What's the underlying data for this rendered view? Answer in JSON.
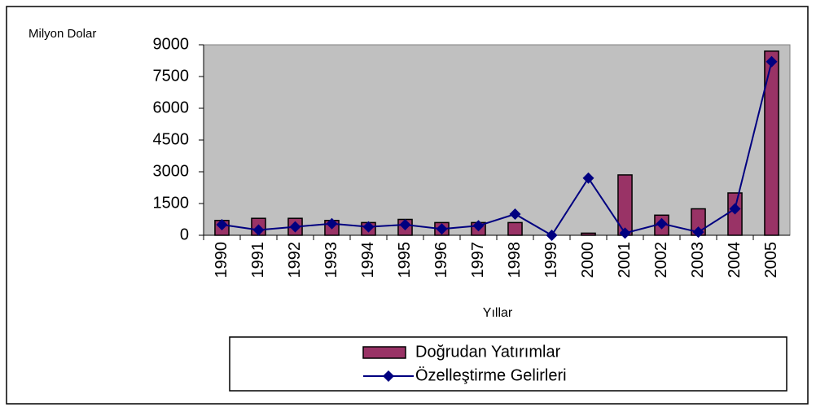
{
  "chart_data": {
    "type": "bar_line",
    "y_axis_label": "Milyon Dolar",
    "x_axis_label": "Yıllar",
    "categories": [
      "1990",
      "1991",
      "1992",
      "1993",
      "1994",
      "1995",
      "1996",
      "1997",
      "1998",
      "1999",
      "2000",
      "2001",
      "2002",
      "2003",
      "2004",
      "2005"
    ],
    "series": [
      {
        "name": "Doğrudan Yatırımlar",
        "type": "bar",
        "color": "#993366",
        "values": [
          700,
          800,
          800,
          700,
          600,
          750,
          600,
          600,
          600,
          0,
          100,
          2850,
          950,
          1250,
          2000,
          8700
        ]
      },
      {
        "name": "Özelleştirme Gelirleri",
        "type": "line",
        "color": "#000080",
        "values": [
          500,
          250,
          400,
          550,
          400,
          500,
          300,
          450,
          1000,
          0,
          2700,
          100,
          550,
          150,
          1250,
          8200
        ]
      }
    ],
    "ylim": [
      0,
      9000
    ],
    "yticks": [
      0,
      1500,
      3000,
      4500,
      6000,
      7500,
      9000
    ],
    "plot_background": "#c0c0c0"
  }
}
